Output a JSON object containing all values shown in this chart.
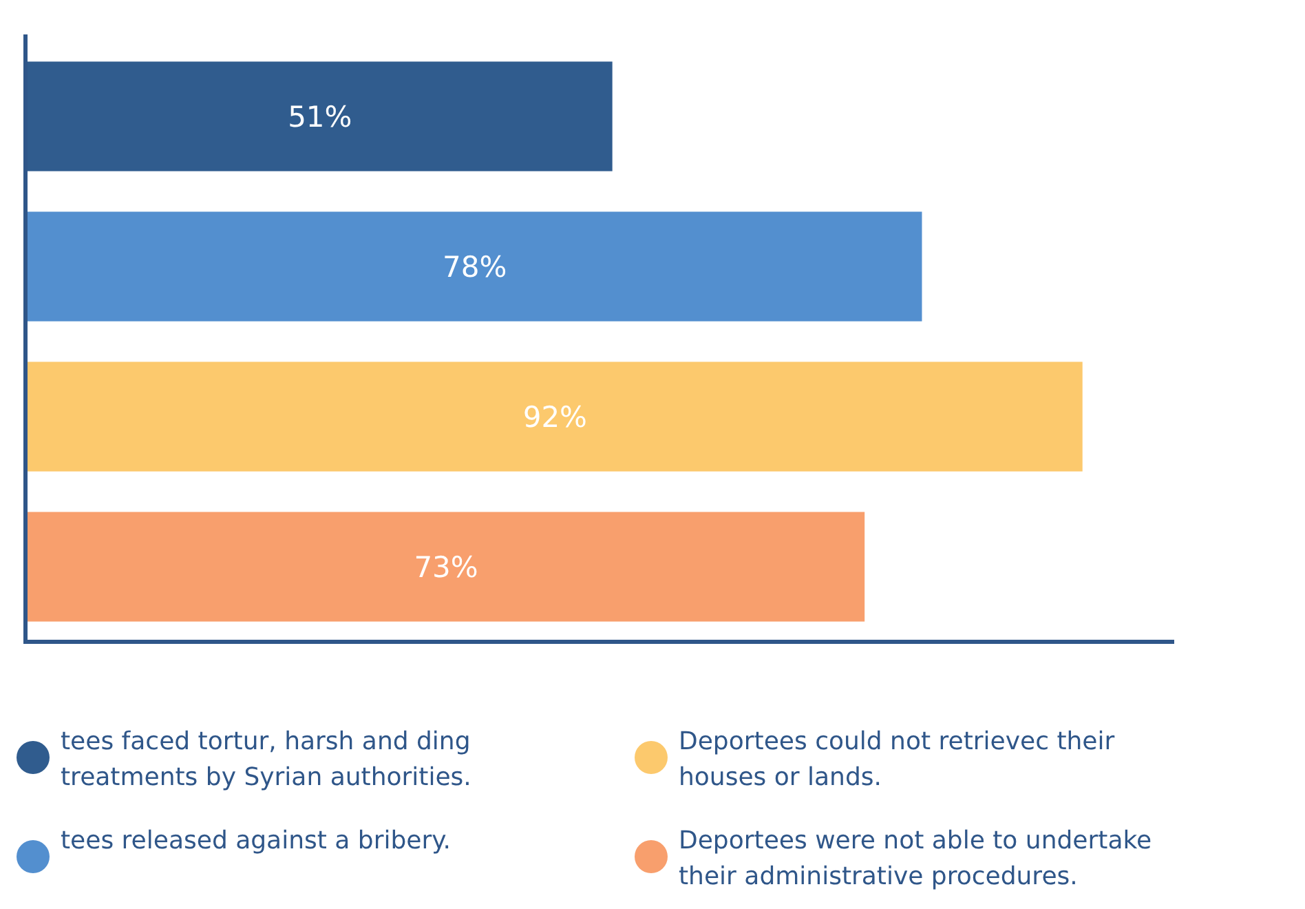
{
  "chart_data": {
    "type": "bar",
    "orientation": "horizontal",
    "categories": [
      null
    ],
    "legend": "bottom",
    "series": [
      {
        "name": "tees faced tortur, harsh and ding treatments by Syrian authorities.",
        "color": "#305c8e",
        "values": [
          51
        ],
        "value_labels": [
          "51%"
        ]
      },
      {
        "name": "tees  released against a bribery.",
        "color": "#538fcf",
        "values": [
          78
        ],
        "value_labels": [
          "78%"
        ]
      },
      {
        "name": "Deportees could not retrievec their houses or lands.",
        "color": "#fcc96d",
        "values": [
          92
        ],
        "value_labels": [
          "92%"
        ]
      },
      {
        "name": "Deportees were not able to undertake their administrative procedures.",
        "color": "#f89f6d",
        "values": [
          73
        ],
        "value_labels": [
          "73%"
        ]
      }
    ]
  }
}
